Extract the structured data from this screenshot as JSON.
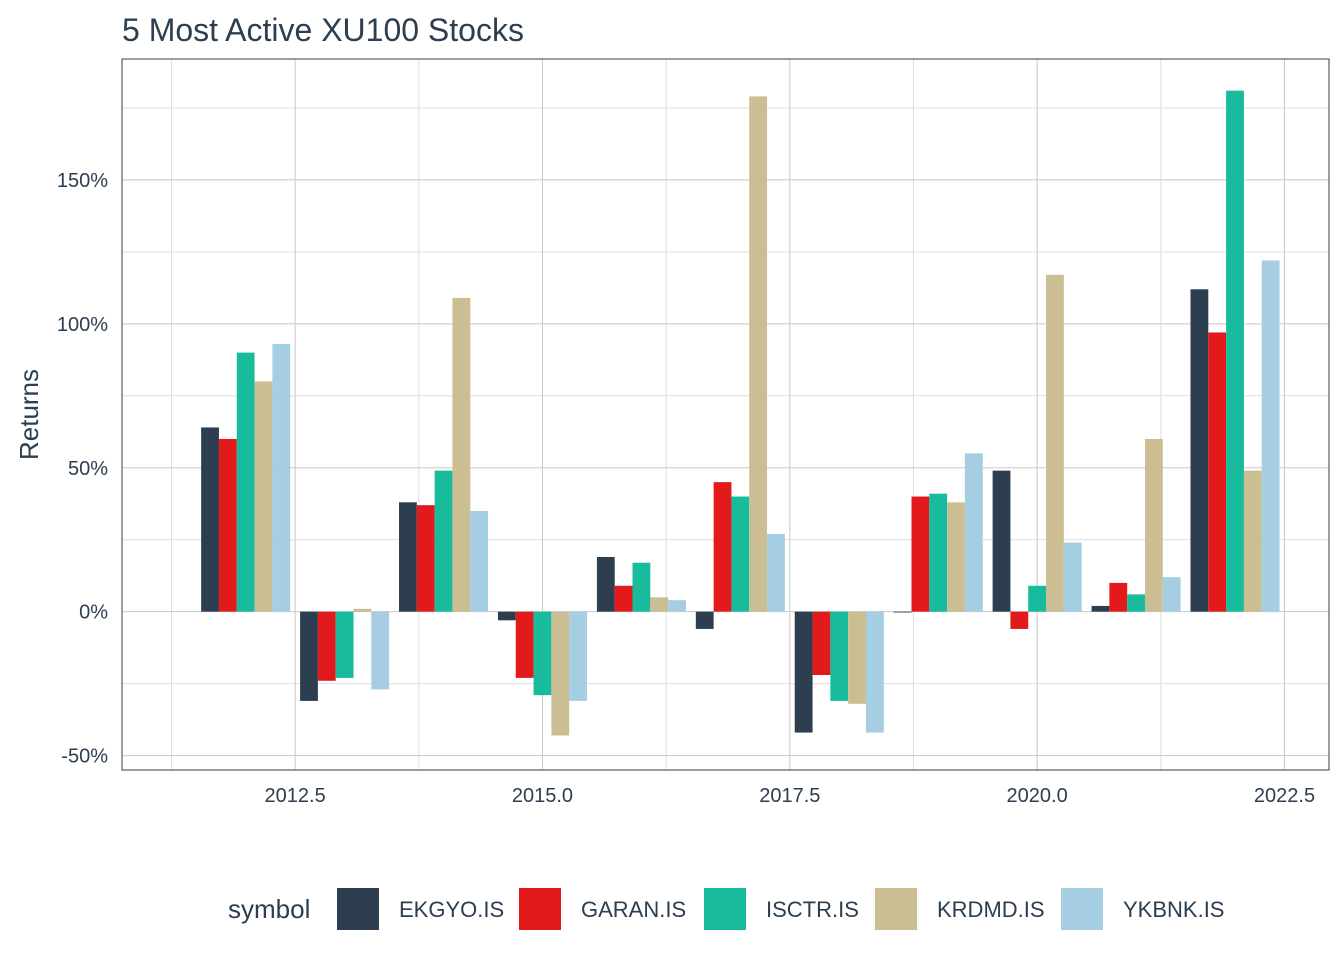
{
  "chart_data": {
    "type": "bar",
    "title": "5 Most Active XU100 Stocks",
    "xlabel": "",
    "ylabel": "Returns",
    "x": [
      2012,
      2013,
      2014,
      2015,
      2016,
      2017,
      2018,
      2019,
      2020,
      2021,
      2022
    ],
    "xlim": [
      2010.75,
      2022.95
    ],
    "ylim": [
      -0.55,
      1.92
    ],
    "x_ticks": [
      2012.5,
      2015.0,
      2017.5,
      2020.0,
      2022.5
    ],
    "x_tick_labels": [
      "2012.5",
      "2015.0",
      "2017.5",
      "2020.0",
      "2022.5"
    ],
    "y_ticks": [
      -0.5,
      0,
      0.5,
      1.0,
      1.5
    ],
    "y_tick_labels": [
      "-50%",
      "0%",
      "50%",
      "100%",
      "150%"
    ],
    "grid": true,
    "legend_title": "symbol",
    "legend_position": "bottom",
    "series": [
      {
        "name": "EKGYO.IS",
        "color": "#2c3e50",
        "values": [
          0.64,
          -0.31,
          0.38,
          -0.03,
          0.19,
          -0.06,
          -0.42,
          0.0,
          0.49,
          0.02,
          1.12
        ]
      },
      {
        "name": "GARAN.IS",
        "color": "#e31a1c",
        "values": [
          0.6,
          -0.24,
          0.37,
          -0.23,
          0.09,
          0.45,
          -0.22,
          0.4,
          -0.06,
          0.1,
          0.97
        ]
      },
      {
        "name": "ISCTR.IS",
        "color": "#18bc9c",
        "values": [
          0.9,
          -0.23,
          0.49,
          -0.29,
          0.17,
          0.4,
          -0.31,
          0.41,
          0.09,
          0.06,
          1.81
        ]
      },
      {
        "name": "KRDMD.IS",
        "color": "#ccbe93",
        "values": [
          0.8,
          0.01,
          1.09,
          -0.43,
          0.05,
          1.79,
          -0.32,
          0.38,
          1.17,
          0.6,
          0.49
        ]
      },
      {
        "name": "YKBNK.IS",
        "color": "#a6cee3",
        "values": [
          0.93,
          -0.27,
          0.35,
          -0.31,
          0.04,
          0.27,
          -0.42,
          0.55,
          0.24,
          0.12,
          1.22
        ]
      }
    ]
  }
}
